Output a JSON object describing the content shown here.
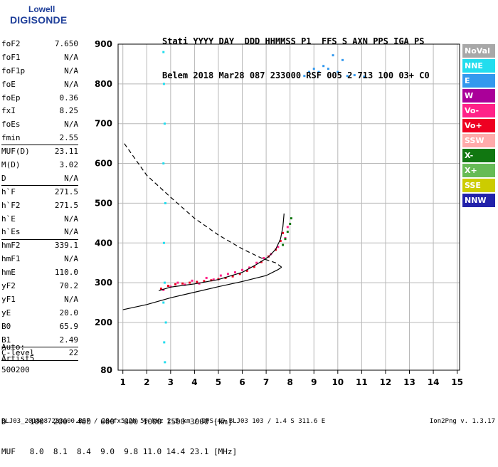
{
  "logo": {
    "line1": "Lowell",
    "line2": "DIGISONDE"
  },
  "header": {
    "line1": "Stati YYYY DAY  DDD HHMMSS P1  FFS S AXN PPS IGA PS",
    "line2": "Belem 2018 Mar28 087 233000 RSF 005 2 713 100 03+ C0"
  },
  "params": [
    {
      "name": "foF2",
      "value": "7.650"
    },
    {
      "name": "foF1",
      "value": "N/A"
    },
    {
      "name": "foF1p",
      "value": "N/A"
    },
    {
      "name": "foE",
      "value": "N/A"
    },
    {
      "name": "foEp",
      "value": "0.36"
    },
    {
      "name": "fxI",
      "value": "8.25"
    },
    {
      "name": "foEs",
      "value": "N/A"
    },
    {
      "name": "fmin",
      "value": "2.55"
    },
    {
      "name": "MUF(D)",
      "value": "23.11"
    },
    {
      "name": "M(D)",
      "value": "3.02"
    },
    {
      "name": "D",
      "value": "N/A"
    },
    {
      "name": "h`F",
      "value": "271.5"
    },
    {
      "name": "h`F2",
      "value": "271.5"
    },
    {
      "name": "h`E",
      "value": "N/A"
    },
    {
      "name": "h`Es",
      "value": "N/A"
    },
    {
      "name": "hmF2",
      "value": "339.1"
    },
    {
      "name": "hmF1",
      "value": "N/A"
    },
    {
      "name": "hmE",
      "value": "110.0"
    },
    {
      "name": "yF2",
      "value": "70.2"
    },
    {
      "name": "yF1",
      "value": "N/A"
    },
    {
      "name": "yE",
      "value": "20.0"
    },
    {
      "name": "B0",
      "value": "65.9"
    },
    {
      "name": "B1",
      "value": "2.49"
    },
    {
      "name": "C-level",
      "value": "22"
    }
  ],
  "auto": {
    "line1": "Auto:",
    "line2": "Artist5",
    "line3": "500200"
  },
  "legend": [
    {
      "label": "NoVal",
      "color": "#a8a8a8"
    },
    {
      "label": "NNE",
      "color": "#22ddee"
    },
    {
      "label": "E",
      "color": "#3399ee"
    },
    {
      "label": "W",
      "color": "#aa0099"
    },
    {
      "label": "Vo-",
      "color": "#ff2288"
    },
    {
      "label": "Vo+",
      "color": "#ee0022"
    },
    {
      "label": "SSW",
      "color": "#ffaaaa"
    },
    {
      "label": "X-",
      "color": "#117711"
    },
    {
      "label": "X+",
      "color": "#66bb55"
    },
    {
      "label": "SSE",
      "color": "#cccc00"
    },
    {
      "label": "NNW",
      "color": "#2222aa"
    }
  ],
  "muf_table": {
    "d_label": "D",
    "d_values": "100  200  400  600  800 1000 1500 3000 [km]",
    "muf_label": "MUF",
    "muf_values": "8.0  8.1  8.4  9.0  9.8 11.0 14.4 23.1 [MHz]"
  },
  "footer": {
    "info": "BLJ03_2018087233000.RSF / 284fx512h 50 kHz 2.5 km / DPS-4D BLJ03 103 / 1.4 S 311.6 E",
    "version": "Ion2Png v. 1.3.17"
  },
  "chart_data": {
    "type": "scatter",
    "title": "",
    "xlabel": "",
    "ylabel": "",
    "xlim": [
      0.8,
      15.1
    ],
    "ylim": [
      80,
      900
    ],
    "x_ticks": [
      1,
      2,
      3,
      4,
      5,
      6,
      7,
      8,
      9,
      10,
      11,
      12,
      13,
      14,
      15
    ],
    "y_ticks": [
      80,
      200,
      300,
      400,
      500,
      600,
      700,
      800,
      900
    ],
    "grid": true,
    "series": [
      {
        "name": "Vo+",
        "color": "#ee0022",
        "points": [
          [
            2.6,
            285
          ],
          [
            2.9,
            292
          ],
          [
            3.2,
            296
          ],
          [
            3.5,
            298
          ],
          [
            3.8,
            300
          ],
          [
            4.1,
            302
          ],
          [
            4.4,
            304
          ],
          [
            4.7,
            306
          ],
          [
            5.0,
            309
          ],
          [
            5.3,
            312
          ],
          [
            5.6,
            316
          ],
          [
            5.9,
            322
          ],
          [
            6.2,
            330
          ],
          [
            6.5,
            340
          ],
          [
            6.8,
            352
          ],
          [
            7.1,
            366
          ],
          [
            7.4,
            383
          ],
          [
            7.6,
            405
          ],
          [
            7.7,
            425
          ]
        ]
      },
      {
        "name": "Vo-",
        "color": "#ff2288",
        "points": [
          [
            2.7,
            282
          ],
          [
            3.0,
            290
          ],
          [
            3.3,
            300
          ],
          [
            3.6,
            295
          ],
          [
            3.9,
            305
          ],
          [
            4.2,
            298
          ],
          [
            4.5,
            312
          ],
          [
            4.8,
            308
          ],
          [
            5.1,
            318
          ],
          [
            5.4,
            322
          ],
          [
            5.7,
            326
          ],
          [
            6.0,
            332
          ],
          [
            6.3,
            338
          ],
          [
            6.6,
            350
          ],
          [
            6.9,
            362
          ],
          [
            7.2,
            372
          ],
          [
            7.5,
            390
          ],
          [
            7.8,
            412
          ],
          [
            7.9,
            440
          ]
        ]
      },
      {
        "name": "X-",
        "color": "#117711",
        "points": [
          [
            7.7,
            395
          ],
          [
            7.8,
            410
          ],
          [
            7.9,
            428
          ],
          [
            8.0,
            448
          ],
          [
            8.05,
            462
          ]
        ]
      },
      {
        "name": "E",
        "color": "#3399ee",
        "points": [
          [
            8.6,
            820
          ],
          [
            8.8,
            830
          ],
          [
            9.0,
            838
          ],
          [
            9.2,
            830
          ],
          [
            9.4,
            845
          ],
          [
            9.6,
            838
          ],
          [
            9.8,
            872
          ],
          [
            10.0,
            830
          ],
          [
            10.2,
            860
          ],
          [
            10.4,
            820
          ],
          [
            10.7,
            822
          ],
          [
            11.1,
            818
          ]
        ]
      },
      {
        "name": "NNE",
        "color": "#22ddee",
        "points": [
          [
            2.7,
            880
          ],
          [
            2.72,
            800
          ],
          [
            2.75,
            700
          ],
          [
            2.7,
            600
          ],
          [
            2.78,
            500
          ],
          [
            2.72,
            400
          ],
          [
            2.75,
            300
          ],
          [
            2.7,
            250
          ],
          [
            2.8,
            200
          ],
          [
            2.73,
            150
          ],
          [
            2.76,
            100
          ]
        ]
      }
    ],
    "profile_curve": [
      [
        1.0,
        232
      ],
      [
        2.0,
        245
      ],
      [
        3.0,
        262
      ],
      [
        4.0,
        276
      ],
      [
        5.0,
        290
      ],
      [
        6.0,
        303
      ],
      [
        7.0,
        318
      ],
      [
        7.5,
        333
      ],
      [
        7.65,
        339
      ],
      [
        7.4,
        350
      ],
      [
        6.8,
        362
      ],
      [
        6.0,
        385
      ],
      [
        5.0,
        420
      ],
      [
        4.0,
        462
      ],
      [
        3.0,
        515
      ],
      [
        2.0,
        570
      ],
      [
        1.0,
        655
      ]
    ],
    "trace_curve": [
      [
        2.5,
        280
      ],
      [
        3.0,
        289
      ],
      [
        4.0,
        297
      ],
      [
        5.0,
        308
      ],
      [
        6.0,
        326
      ],
      [
        6.6,
        346
      ],
      [
        7.1,
        365
      ],
      [
        7.4,
        384
      ],
      [
        7.6,
        410
      ],
      [
        7.7,
        440
      ],
      [
        7.75,
        474
      ]
    ]
  }
}
